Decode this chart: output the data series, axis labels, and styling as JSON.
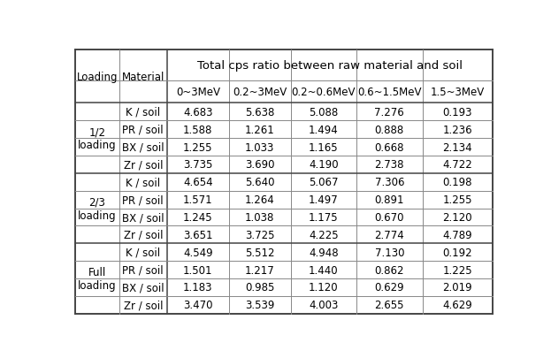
{
  "title": "Total cps ratio between raw material and soil",
  "col_headers": [
    "0~3MeV",
    "0.2~3MeV",
    "0.2~0.6MeV",
    "0.6~1.5MeV",
    "1.5~3MeV"
  ],
  "row_groups": [
    {
      "loading": "1/2\nloading",
      "materials": [
        "K / soil",
        "PR / soil",
        "BX / soil",
        "Zr / soil"
      ],
      "values": [
        [
          4.683,
          5.638,
          5.088,
          7.276,
          0.193
        ],
        [
          1.588,
          1.261,
          1.494,
          0.888,
          1.236
        ],
        [
          1.255,
          1.033,
          1.165,
          0.668,
          2.134
        ],
        [
          3.735,
          3.69,
          4.19,
          2.738,
          4.722
        ]
      ]
    },
    {
      "loading": "2/3\nloading",
      "materials": [
        "K / soil",
        "PR / soil",
        "BX / soil",
        "Zr / soil"
      ],
      "values": [
        [
          4.654,
          5.64,
          5.067,
          7.306,
          0.198
        ],
        [
          1.571,
          1.264,
          1.497,
          0.891,
          1.255
        ],
        [
          1.245,
          1.038,
          1.175,
          0.67,
          2.12
        ],
        [
          3.651,
          3.725,
          4.225,
          2.774,
          4.789
        ]
      ]
    },
    {
      "loading": "Full\nloading",
      "materials": [
        "K / soil",
        "PR / soil",
        "BX / soil",
        "Zr / soil"
      ],
      "values": [
        [
          4.549,
          5.512,
          4.948,
          7.13,
          0.192
        ],
        [
          1.501,
          1.217,
          1.44,
          0.862,
          1.225
        ],
        [
          1.183,
          0.985,
          1.12,
          0.629,
          2.019
        ],
        [
          3.47,
          3.539,
          4.003,
          2.655,
          4.629
        ]
      ]
    }
  ],
  "bg_color": "#ffffff",
  "line_color": "#888888",
  "thick_line_color": "#444444",
  "font_size": 8.5,
  "header_font_size": 8.5,
  "title_font_size": 9.5
}
